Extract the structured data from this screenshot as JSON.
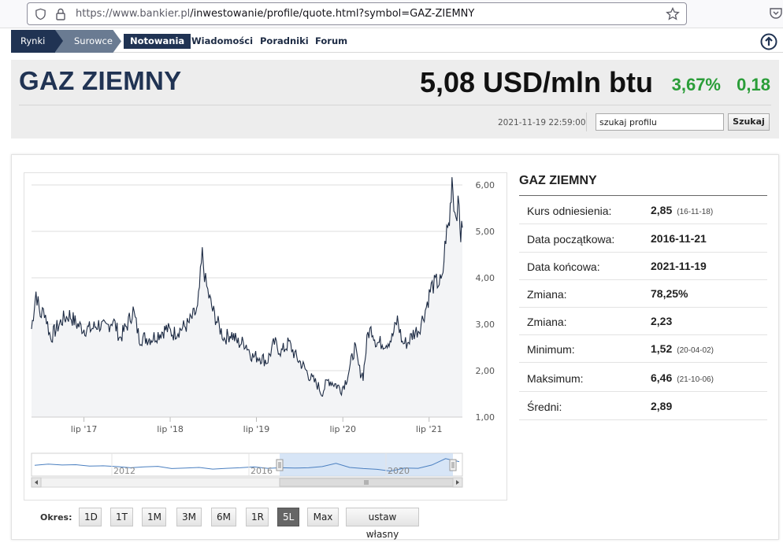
{
  "browser": {
    "url_host": "https://www.bankier.pl",
    "url_path": "/inwestowanie/profile/quote.html?symbol=GAZ-ZIEMNY"
  },
  "nav": {
    "crumbs": [
      "Rynki",
      "Surowce"
    ],
    "links": [
      "Notowania",
      "Wiadomości",
      "Poradniki",
      "Forum"
    ]
  },
  "header": {
    "title": "GAZ ZIEMNY",
    "price": "5,08 USD/mln btu",
    "change_pct": "3,67%",
    "change_abs": "0,18",
    "timestamp": "2021-11-19 22:59:00",
    "search_value": "szukaj profilu",
    "search_button": "Szukaj"
  },
  "colors": {
    "navy": "#203353",
    "green": "#2a9d38",
    "line": "#1d2b44",
    "area": "#f3f4f6",
    "navigator_fill": "#c9dcf3",
    "navigator_line": "#4a7fc0"
  },
  "range": {
    "label": "Okres:",
    "buttons": [
      "1D",
      "1T",
      "1M",
      "3M",
      "6M",
      "1R",
      "5L",
      "Max",
      "ustaw własny"
    ],
    "selected": "5L"
  },
  "info": {
    "title": "GAZ ZIEMNY",
    "rows": [
      {
        "label": "Kurs odniesienia:",
        "value": "2,85",
        "date": "(16-11-18)"
      },
      {
        "label": "Data początkowa:",
        "value": "2016-11-21",
        "date": ""
      },
      {
        "label": "Data końcowa:",
        "value": "2021-11-19",
        "date": ""
      },
      {
        "label": "Zmiana:",
        "value": "78,25%",
        "date": ""
      },
      {
        "label": "Zmiana:",
        "value": "2,23",
        "date": ""
      },
      {
        "label": "Minimum:",
        "value": "1,52",
        "date": "(20-04-02)"
      },
      {
        "label": "Maksimum:",
        "value": "6,46",
        "date": "(21-10-06)"
      },
      {
        "label": "Średni:",
        "value": "2,89",
        "date": ""
      }
    ]
  },
  "chart_data": {
    "type": "area",
    "title": "",
    "xlabel": "",
    "ylabel": "",
    "ylim": [
      1,
      6
    ],
    "y_ticks": [
      "1,00",
      "2,00",
      "3,00",
      "4,00",
      "5,00",
      "6,00"
    ],
    "x_ticks": [
      "lip '17",
      "lip '18",
      "lip '19",
      "lip '20",
      "lip '21"
    ],
    "grid": true,
    "series": [
      {
        "x": [
          "2016-11-21",
          "2016-12-10",
          "2016-12-28",
          "2017-01-15",
          "2017-02-10",
          "2017-03-05",
          "2017-04-01",
          "2017-05-01",
          "2017-06-01",
          "2017-07-01",
          "2017-08-01",
          "2017-09-01",
          "2017-10-01",
          "2017-11-01",
          "2017-12-01",
          "2018-01-01",
          "2018-01-25",
          "2018-02-20",
          "2018-03-15",
          "2018-04-15",
          "2018-05-15",
          "2018-06-15",
          "2018-07-15",
          "2018-08-15",
          "2018-09-15",
          "2018-10-10",
          "2018-10-25",
          "2018-11-14",
          "2018-11-28",
          "2018-12-12",
          "2018-12-28",
          "2019-01-20",
          "2019-02-15",
          "2019-03-15",
          "2019-04-15",
          "2019-05-15",
          "2019-06-15",
          "2019-07-15",
          "2019-08-15",
          "2019-09-15",
          "2019-10-15",
          "2019-11-15",
          "2019-12-15",
          "2020-01-15",
          "2020-02-15",
          "2020-03-15",
          "2020-04-02",
          "2020-05-01",
          "2020-06-01",
          "2020-06-25",
          "2020-07-15",
          "2020-08-01",
          "2020-08-20",
          "2020-09-10",
          "2020-09-25",
          "2020-10-15",
          "2020-11-01",
          "2020-11-20",
          "2020-12-10",
          "2021-01-01",
          "2021-01-25",
          "2021-02-17",
          "2021-03-10",
          "2021-04-01",
          "2021-04-25",
          "2021-05-20",
          "2021-06-15",
          "2021-07-10",
          "2021-08-01",
          "2021-08-25",
          "2021-09-10",
          "2021-09-25",
          "2021-10-06",
          "2021-10-18",
          "2021-10-27",
          "2021-11-05",
          "2021-11-12",
          "2021-11-19"
        ],
        "values": [
          2.9,
          3.7,
          3.2,
          3.3,
          2.7,
          2.9,
          3.1,
          3.2,
          3.0,
          2.9,
          2.9,
          3.0,
          2.9,
          3.1,
          2.7,
          3.0,
          3.3,
          2.7,
          2.7,
          2.7,
          2.8,
          2.9,
          2.8,
          2.9,
          3.0,
          3.2,
          3.3,
          4.5,
          3.9,
          3.6,
          3.3,
          3.0,
          2.7,
          2.8,
          2.6,
          2.6,
          2.3,
          2.3,
          2.2,
          2.6,
          2.4,
          2.6,
          2.3,
          2.1,
          1.85,
          1.7,
          1.52,
          1.8,
          1.7,
          1.6,
          1.8,
          2.1,
          2.5,
          2.0,
          1.9,
          2.8,
          2.9,
          2.6,
          2.6,
          2.6,
          2.7,
          3.1,
          2.6,
          2.6,
          2.8,
          2.9,
          3.3,
          3.8,
          3.9,
          3.9,
          4.9,
          5.2,
          6.2,
          5.4,
          5.5,
          5.5,
          4.9,
          5.08
        ]
      }
    ],
    "navigator": {
      "tick_labels": [
        "2012",
        "2016",
        "2020"
      ],
      "selected_range": [
        "2016-11-21",
        "2021-11-19"
      ]
    }
  }
}
